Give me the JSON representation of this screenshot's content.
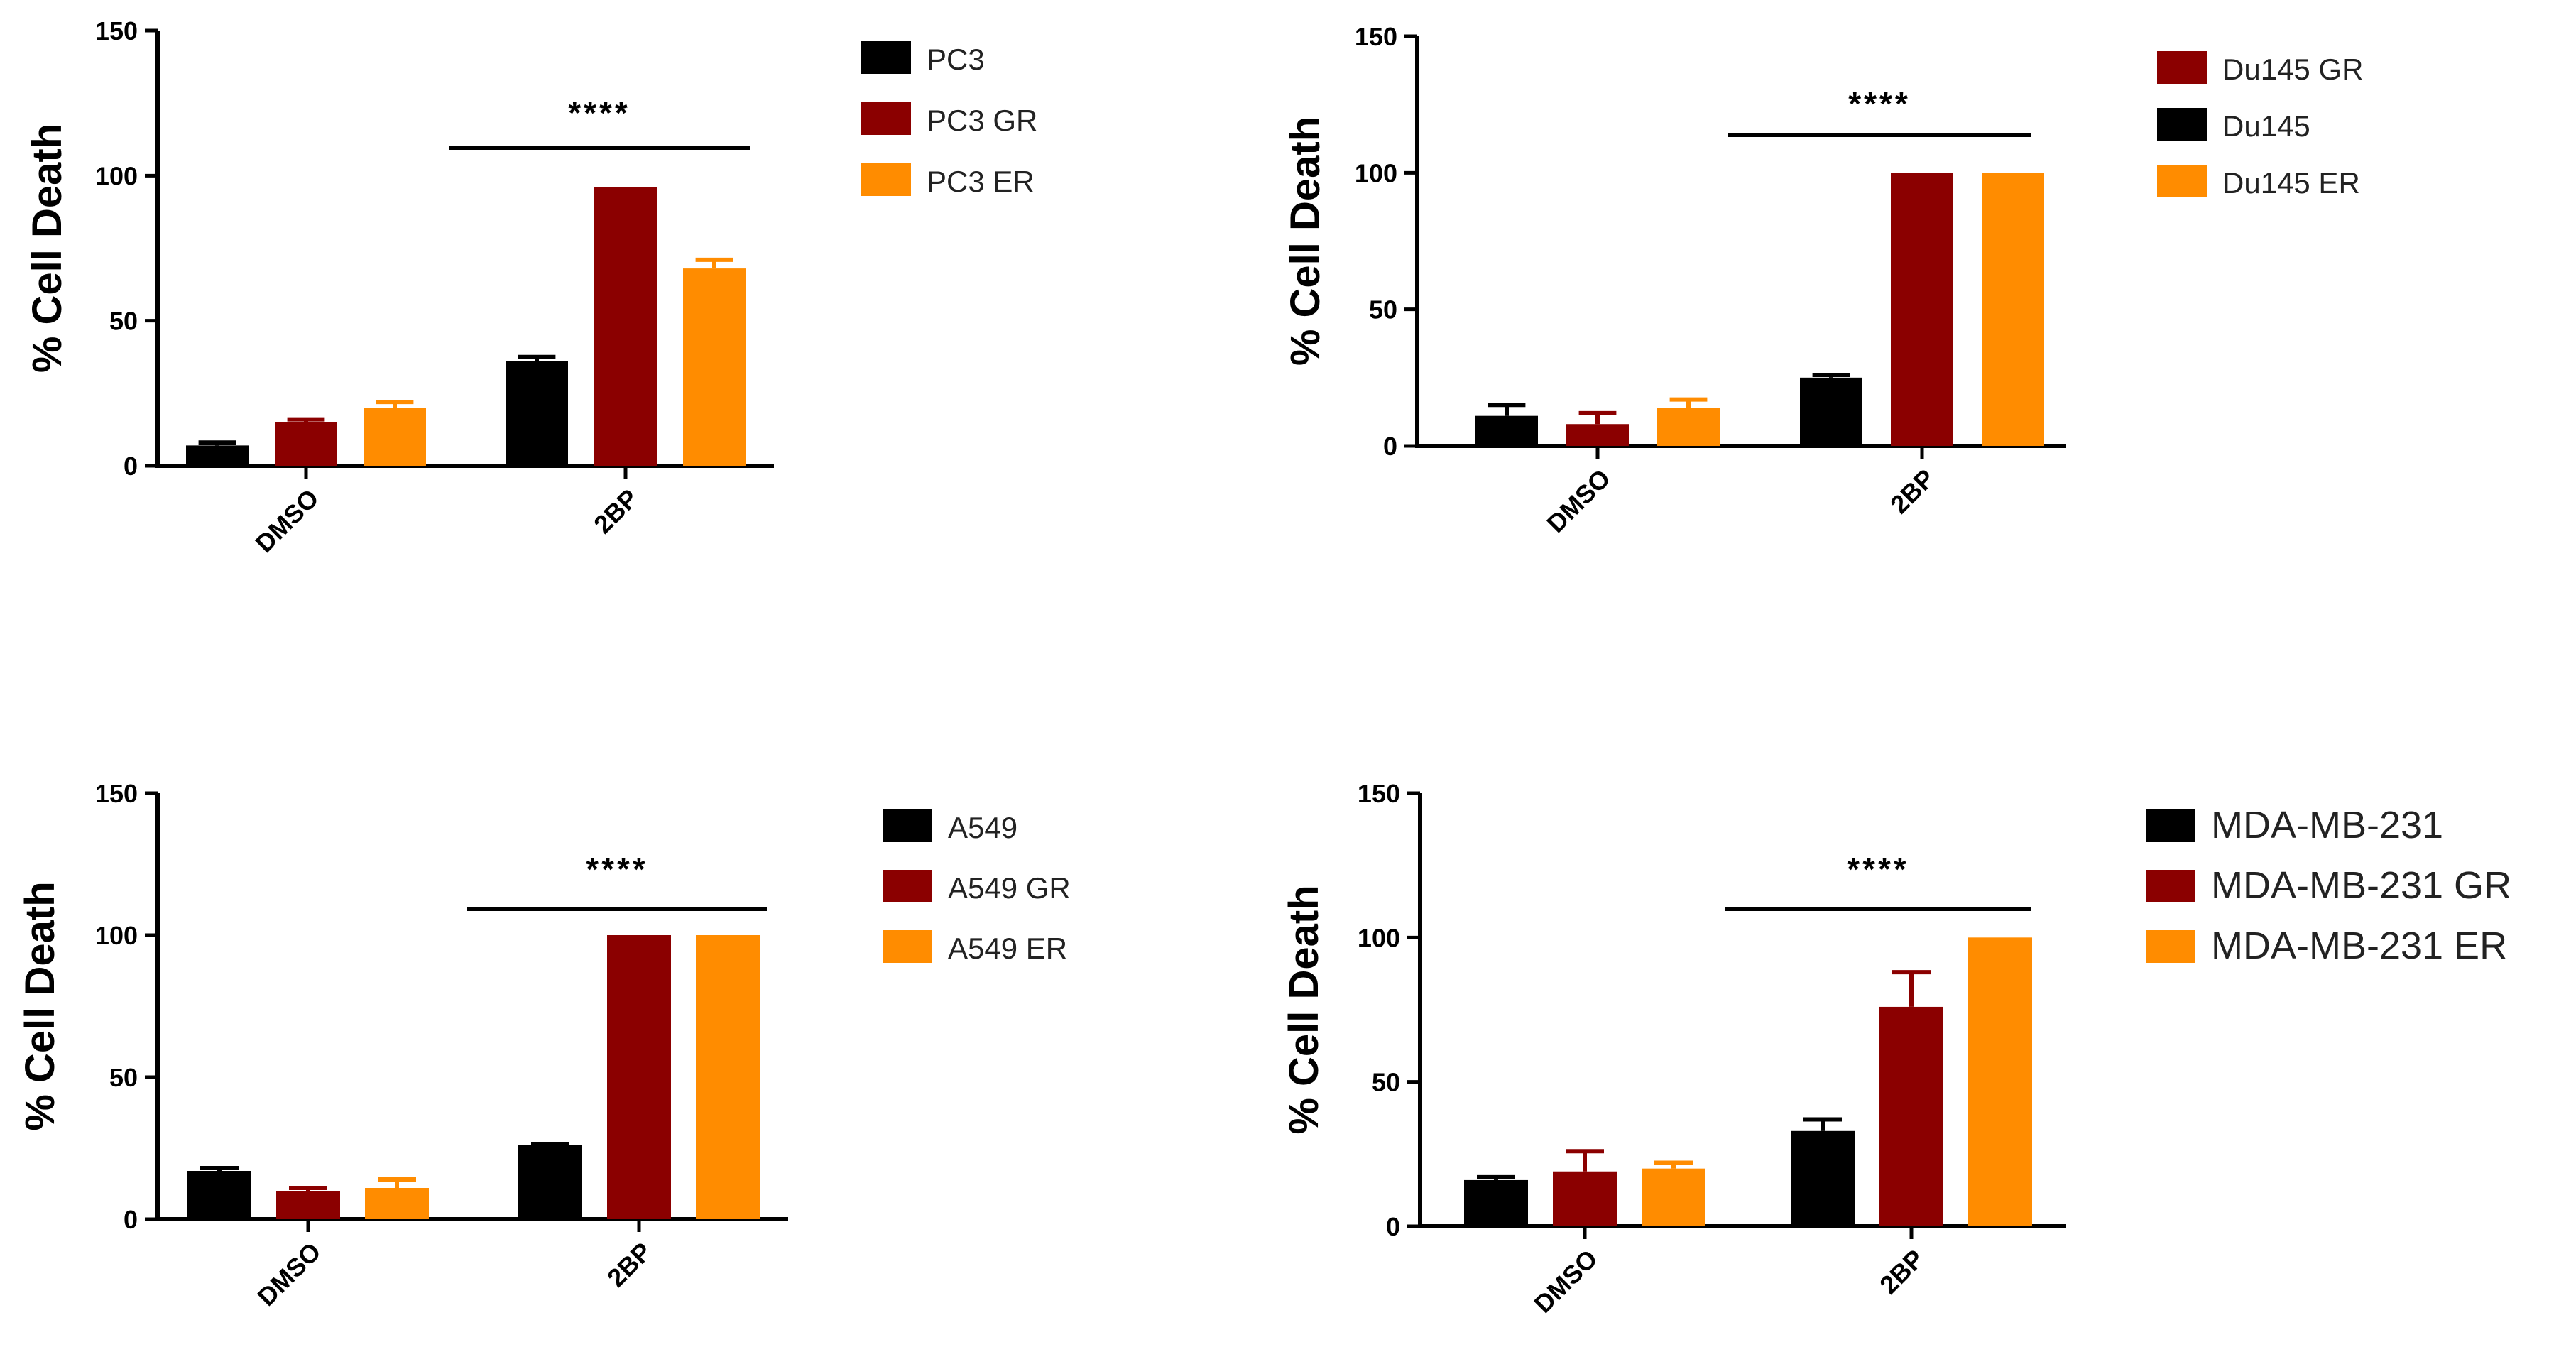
{
  "colors": {
    "black": "#000000",
    "dark_red": "#8b0000",
    "orange": "#ff8c00"
  },
  "chart_data": [
    {
      "type": "bar",
      "title": "",
      "xlabel": "",
      "ylabel": "% Cell Death",
      "ylim": [
        0,
        150
      ],
      "yticks": [
        "0",
        "50",
        "100",
        "150"
      ],
      "categories": [
        "DMSO",
        "2BP"
      ],
      "legend_position": "right",
      "significance": {
        "label": "****",
        "group": "2BP"
      },
      "series": [
        {
          "name": "PC3",
          "color": "#000000",
          "values": [
            7,
            36
          ],
          "errors": [
            1,
            1.5
          ]
        },
        {
          "name": "PC3 GR",
          "color": "#8b0000",
          "values": [
            15,
            96
          ],
          "errors": [
            1,
            0
          ]
        },
        {
          "name": "PC3 ER",
          "color": "#ff8c00",
          "values": [
            20,
            68
          ],
          "errors": [
            2,
            3
          ]
        }
      ]
    },
    {
      "type": "bar",
      "title": "",
      "xlabel": "",
      "ylabel": "% Cell Death",
      "ylim": [
        0,
        150
      ],
      "yticks": [
        "0",
        "50",
        "100",
        "150"
      ],
      "categories": [
        "DMSO",
        "2BP"
      ],
      "legend_position": "right",
      "significance": {
        "label": "****",
        "group": "2BP"
      },
      "legend_order": [
        1,
        0,
        2
      ],
      "series": [
        {
          "name": "Du145",
          "color": "#000000",
          "values": [
            11,
            25
          ],
          "errors": [
            4,
            1
          ]
        },
        {
          "name": "Du145 GR",
          "color": "#8b0000",
          "values": [
            8,
            100
          ],
          "errors": [
            4,
            0
          ]
        },
        {
          "name": "Du145 ER",
          "color": "#ff8c00",
          "values": [
            14,
            100
          ],
          "errors": [
            3,
            0
          ]
        }
      ]
    },
    {
      "type": "bar",
      "title": "",
      "xlabel": "",
      "ylabel": "% Cell Death",
      "ylim": [
        0,
        150
      ],
      "yticks": [
        "0",
        "50",
        "100",
        "150"
      ],
      "categories": [
        "DMSO",
        "2BP"
      ],
      "legend_position": "right",
      "significance": {
        "label": "****",
        "group": "2BP"
      },
      "series": [
        {
          "name": "A549",
          "color": "#000000",
          "values": [
            17,
            26
          ],
          "errors": [
            1,
            0.5
          ]
        },
        {
          "name": "A549 GR",
          "color": "#8b0000",
          "values": [
            10,
            100
          ],
          "errors": [
            1,
            0
          ]
        },
        {
          "name": "A549 ER",
          "color": "#ff8c00",
          "values": [
            11,
            100
          ],
          "errors": [
            3,
            0
          ]
        }
      ]
    },
    {
      "type": "bar",
      "title": "",
      "xlabel": "",
      "ylabel": "% Cell Death",
      "ylim": [
        0,
        150
      ],
      "yticks": [
        "0",
        "50",
        "100",
        "150"
      ],
      "categories": [
        "DMSO",
        "2BP"
      ],
      "legend_position": "right",
      "significance": {
        "label": "****",
        "group": "2BP"
      },
      "series": [
        {
          "name": "MDA-MB-231",
          "color": "#000000",
          "values": [
            16,
            33
          ],
          "errors": [
            1,
            4
          ]
        },
        {
          "name": "MDA-MB-231 GR",
          "color": "#8b0000",
          "values": [
            19,
            76
          ],
          "errors": [
            7,
            12
          ]
        },
        {
          "name": "MDA-MB-231 ER",
          "color": "#ff8c00",
          "values": [
            20,
            100
          ],
          "errors": [
            2,
            0
          ]
        }
      ]
    }
  ]
}
